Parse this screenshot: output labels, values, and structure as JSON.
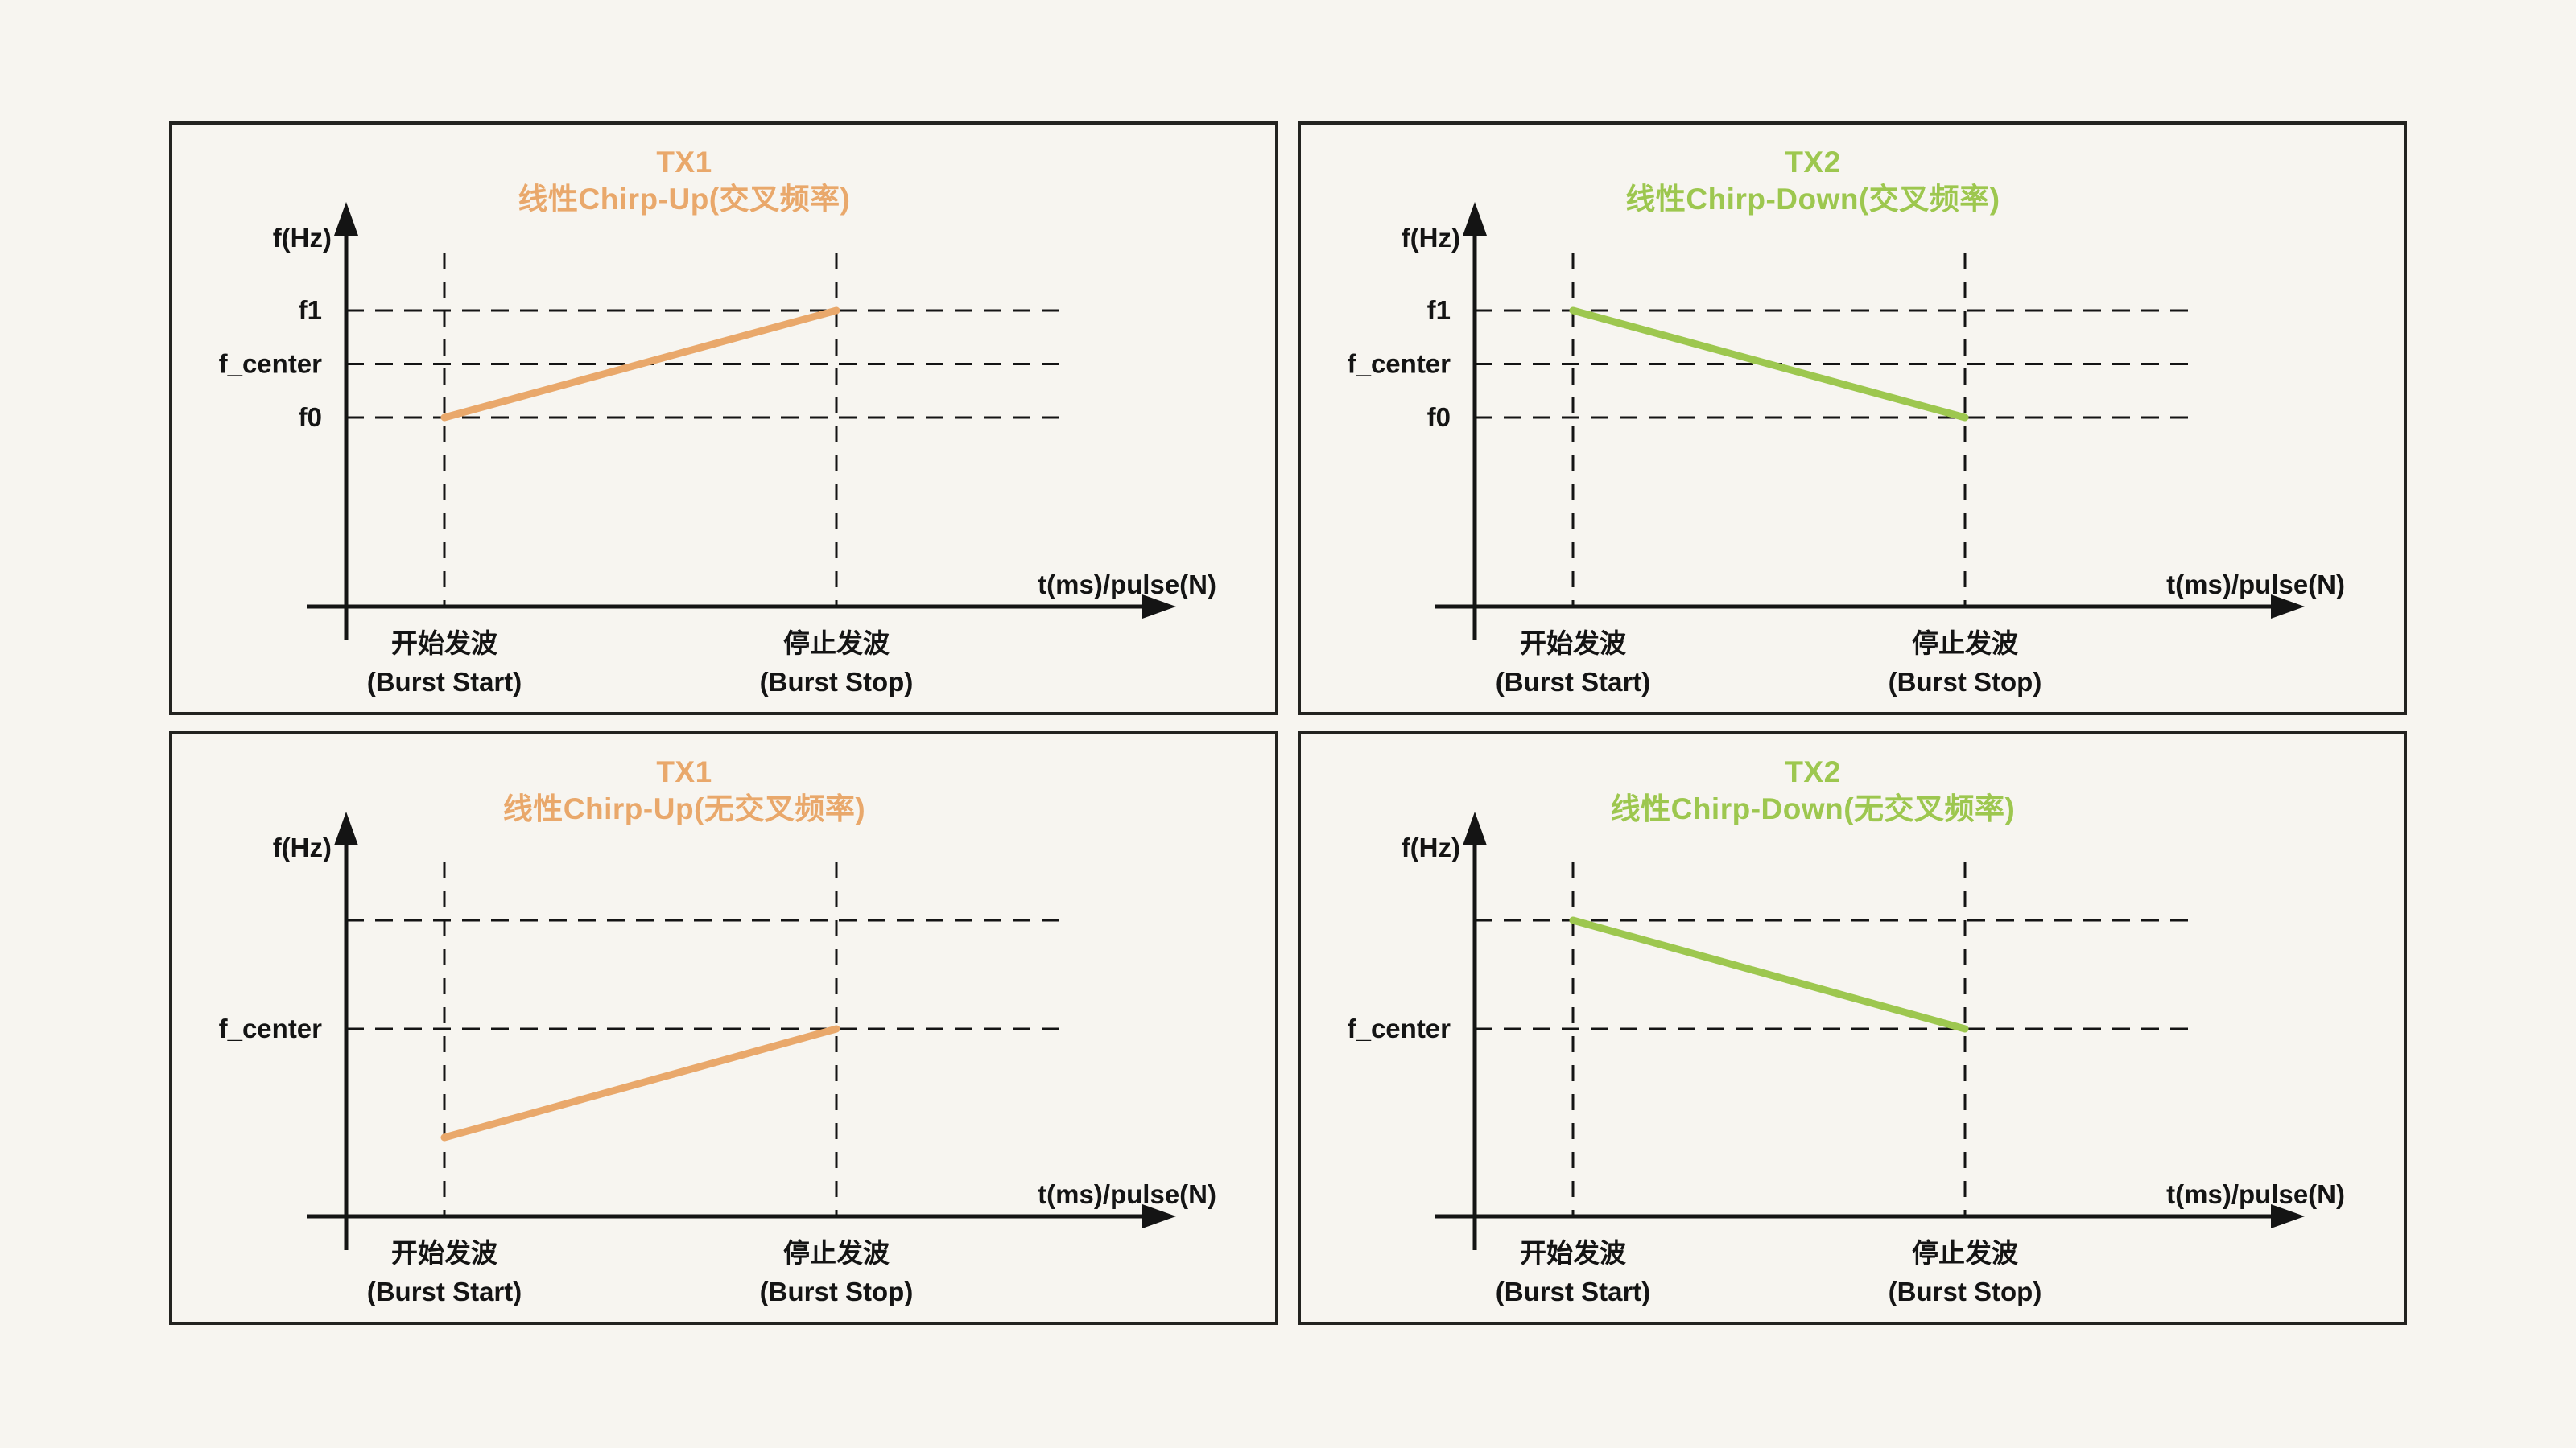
{
  "page": {
    "background": "#F7F5F0",
    "border_color": "#232320",
    "ink_color": "#141414"
  },
  "colors": {
    "tx1_orange": "#E9A86B",
    "tx2_green": "#9DC74F"
  },
  "panels": [
    {
      "name": "tx1-chirp-up-crossed",
      "title_line1": "TX1",
      "title_line2": "线性Chirp-Up(交叉频率)",
      "accent": "#E9A86B"
    },
    {
      "name": "tx2-chirp-down-crossed",
      "title_line1": "TX2",
      "title_line2": "线性Chirp-Down(交叉频率)",
      "accent": "#9DC74F"
    },
    {
      "name": "tx1-chirp-up-uncrossed",
      "title_line1": "TX1",
      "title_line2": "线性Chirp-Up(无交叉频率)",
      "accent": "#E9A86B"
    },
    {
      "name": "tx2-chirp-down-uncrossed",
      "title_line1": "TX2",
      "title_line2": "线性Chirp-Down(无交叉频率)",
      "accent": "#9DC74F"
    }
  ],
  "chart_data": [
    {
      "type": "line",
      "title": "TX1 线性Chirp-Up(交叉频率)",
      "ylabel": "f(Hz)",
      "xlabel": "t(ms)/pulse(N)",
      "x_categories": [
        "开始发波 (Burst Start)",
        "停止发波 (Burst Stop)"
      ],
      "x_ticks": [
        {
          "line1": "开始发波",
          "line2": "(Burst Start)"
        },
        {
          "line1": "停止发波",
          "line2": "(Burst Stop)"
        }
      ],
      "yticks": [
        {
          "value": 1.0,
          "label": "f1"
        },
        {
          "value": 0.5,
          "label": "f_center"
        },
        {
          "value": 0.0,
          "label": "f0"
        }
      ],
      "grid_extra": [],
      "value_units": "relative frequency: f0=0, f_center=0.5, f1=1",
      "series": [
        {
          "name": "TX1",
          "values": [
            0.0,
            1.0
          ],
          "description": "linear chirp up from f0 at burst start to f1 at burst stop"
        }
      ],
      "ylim": [
        0,
        1
      ],
      "grid": "dashed",
      "legend": "none"
    },
    {
      "type": "line",
      "title": "TX2 线性Chirp-Down(交叉频率)",
      "ylabel": "f(Hz)",
      "xlabel": "t(ms)/pulse(N)",
      "x_categories": [
        "开始发波 (Burst Start)",
        "停止发波 (Burst Stop)"
      ],
      "x_ticks": [
        {
          "line1": "开始发波",
          "line2": "(Burst Start)"
        },
        {
          "line1": "停止发波",
          "line2": "(Burst Stop)"
        }
      ],
      "yticks": [
        {
          "value": 1.0,
          "label": "f1"
        },
        {
          "value": 0.5,
          "label": "f_center"
        },
        {
          "value": 0.0,
          "label": "f0"
        }
      ],
      "grid_extra": [],
      "value_units": "relative frequency: f0=0, f_center=0.5, f1=1",
      "series": [
        {
          "name": "TX2",
          "values": [
            1.0,
            0.0
          ],
          "description": "linear chirp down from f1 at burst start to f0 at burst stop"
        }
      ],
      "ylim": [
        0,
        1
      ],
      "grid": "dashed",
      "legend": "none"
    },
    {
      "type": "line",
      "title": "TX1 线性Chirp-Up(无交叉频率)",
      "ylabel": "f(Hz)",
      "xlabel": "t(ms)/pulse(N)",
      "x_categories": [
        "开始发波 (Burst Start)",
        "停止发波 (Burst Stop)"
      ],
      "x_ticks": [
        {
          "line1": "开始发波",
          "line2": "(Burst Start)"
        },
        {
          "line1": "停止发波",
          "line2": "(Burst Stop)"
        }
      ],
      "yticks": [
        {
          "value": 0.0,
          "label": "f_center"
        }
      ],
      "grid_extra": [
        1.0
      ],
      "value_units": "relative frequency: f_center=0, band offset=±1",
      "series": [
        {
          "name": "TX1",
          "values": [
            -1.0,
            0.0
          ],
          "description": "linear chirp up ending at f_center at burst stop (no frequency crossing with TX2)"
        }
      ],
      "ylim": [
        -1,
        1
      ],
      "grid": "dashed",
      "legend": "none"
    },
    {
      "type": "line",
      "title": "TX2 线性Chirp-Down(无交叉频率)",
      "ylabel": "f(Hz)",
      "xlabel": "t(ms)/pulse(N)",
      "x_categories": [
        "开始发波 (Burst Start)",
        "停止发波 (Burst Stop)"
      ],
      "x_ticks": [
        {
          "line1": "开始发波",
          "line2": "(Burst Start)"
        },
        {
          "line1": "停止发波",
          "line2": "(Burst Stop)"
        }
      ],
      "yticks": [
        {
          "value": 0.0,
          "label": "f_center"
        }
      ],
      "grid_extra": [
        1.0
      ],
      "value_units": "relative frequency: f_center=0, band offset=±1",
      "series": [
        {
          "name": "TX2",
          "values": [
            1.0,
            0.0
          ],
          "description": "linear chirp down ending at f_center at burst stop (no frequency crossing with TX1)"
        }
      ],
      "ylim": [
        -1,
        1
      ],
      "grid": "dashed",
      "legend": "none"
    }
  ]
}
